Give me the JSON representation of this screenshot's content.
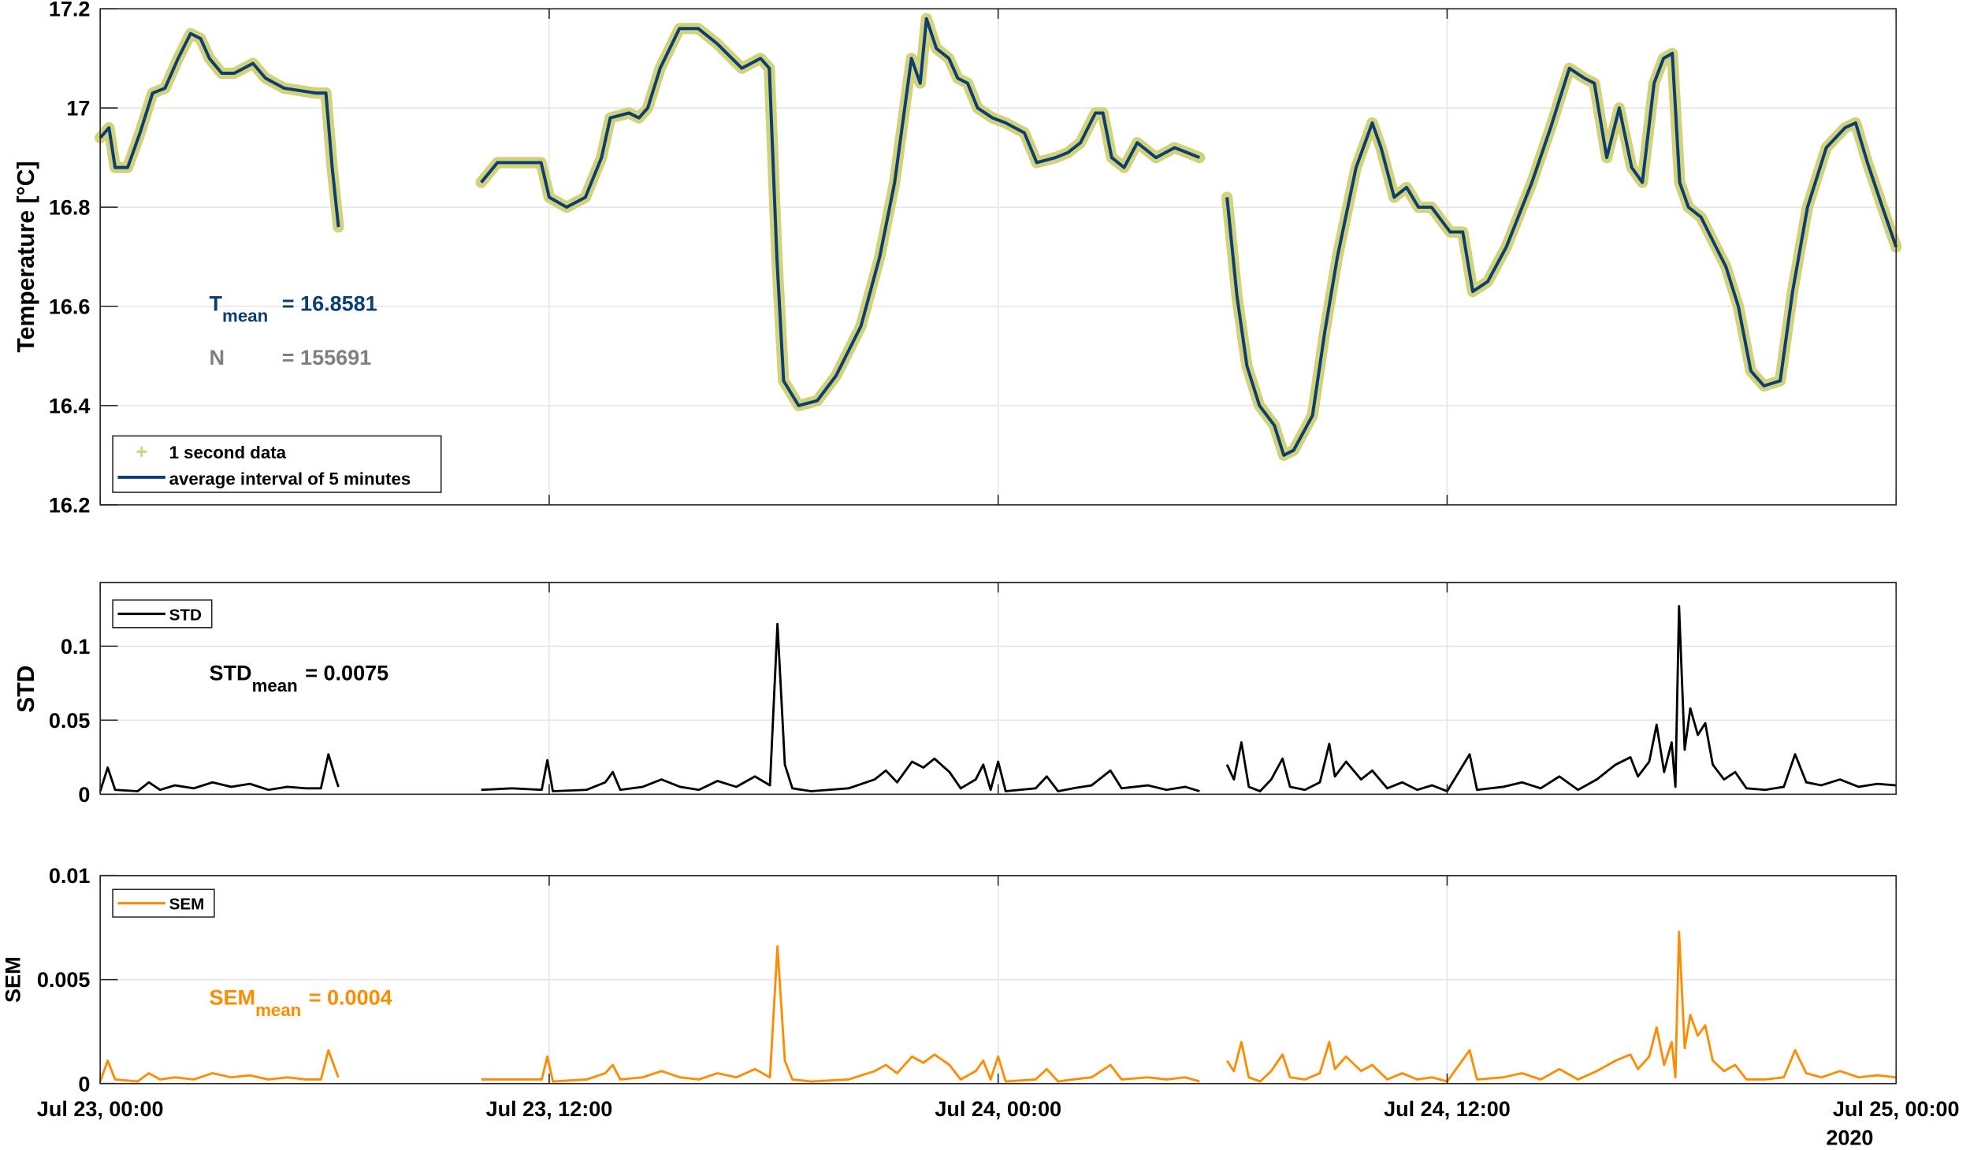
{
  "chart_data": [
    {
      "type": "line",
      "ylabel": "Temperature [°C]",
      "ylim": [
        16.2,
        17.2
      ],
      "yticks": [
        "16.2",
        "16.4",
        "16.6",
        "16.8",
        "17",
        "17.2"
      ],
      "xlim": [
        "2020-07-23 00:00",
        "2020-07-25 00:00"
      ],
      "grid": true,
      "legend_placement": "bottom-left",
      "legend": [
        "1 second data",
        "average interval of 5 minutes"
      ],
      "colors": {
        "raw": "#d2d27a",
        "avg": "#0b3f73",
        "n_text": "#808080"
      },
      "annotations": {
        "tmean_label": "T",
        "tmean_sub": "mean",
        "tmean_value": "= 16.8581",
        "n_label": "N",
        "n_value": "= 155691"
      },
      "segments": [
        {
          "t": [
            "07-23 00:00",
            "07-23 00:14",
            "07-23 00:24",
            "07-23 00:44",
            "07-23 01:04",
            "07-23 01:24",
            "07-23 01:44",
            "07-23 02:05",
            "07-23 02:25",
            "07-23 02:41",
            "07-23 02:55",
            "07-23 03:15",
            "07-23 03:35",
            "07-23 04:05",
            "07-23 04:25",
            "07-23 04:55",
            "07-23 05:46",
            "07-23 06:02",
            "07-23 06:12",
            "07-23 06:22"
          ],
          "temp": [
            16.94,
            16.96,
            16.88,
            16.88,
            16.95,
            17.03,
            17.04,
            17.1,
            17.15,
            17.14,
            17.1,
            17.07,
            17.07,
            17.09,
            17.06,
            17.04,
            17.03,
            17.03,
            16.88,
            16.76
          ]
        },
        {
          "t": [
            "07-23 10:11",
            "07-23 10:37",
            "07-23 11:07",
            "07-23 11:47",
            "07-23 12:00",
            "07-23 12:28",
            "07-23 12:58",
            "07-23 13:24",
            "07-23 13:38",
            "07-23 14:08",
            "07-23 14:24",
            "07-23 14:38",
            "07-23 14:58",
            "07-23 15:29",
            "07-23 15:59",
            "07-23 16:29",
            "07-23 17:09",
            "07-23 17:39",
            "07-23 17:53",
            "07-23 18:05",
            "07-23 18:16",
            "07-23 18:40",
            "07-23 19:10",
            "07-23 19:40",
            "07-23 20:20",
            "07-23 20:50",
            "07-23 21:14",
            "07-23 21:41",
            "07-23 21:55",
            "07-23 22:05",
            "07-23 22:21",
            "07-23 22:41",
            "07-23 22:55",
            "07-23 23:11",
            "07-23 23:27",
            "07-23 23:51",
            "07-24 00:12",
            "07-24 00:42",
            "07-24 01:02",
            "07-24 01:32",
            "07-24 01:52",
            "07-24 02:12",
            "07-24 02:36",
            "07-24 02:48",
            "07-24 03:02",
            "07-24 03:22",
            "07-24 03:43",
            "07-24 04:13",
            "07-24 04:43",
            "07-24 05:03",
            "07-24 05:23"
          ],
          "temp": [
            16.85,
            16.89,
            16.89,
            16.89,
            16.82,
            16.8,
            16.82,
            16.9,
            16.98,
            16.99,
            16.98,
            17.0,
            17.08,
            17.16,
            17.16,
            17.13,
            17.08,
            17.1,
            17.08,
            16.7,
            16.45,
            16.4,
            16.41,
            16.46,
            16.56,
            16.7,
            16.85,
            17.1,
            17.05,
            17.18,
            17.12,
            17.1,
            17.06,
            17.05,
            17.0,
            16.98,
            16.97,
            16.95,
            16.89,
            16.9,
            16.91,
            16.93,
            16.99,
            16.99,
            16.9,
            16.88,
            16.93,
            16.9,
            16.92,
            16.91,
            16.9
          ]
        },
        {
          "t": [
            "07-24 06:07",
            "07-24 06:23",
            "07-24 06:39",
            "07-24 06:59",
            "07-24 07:23",
            "07-24 07:38",
            "07-24 07:54",
            "07-24 08:24",
            "07-24 08:44",
            "07-24 09:04",
            "07-24 09:34",
            "07-24 10:00",
            "07-24 10:14",
            "07-24 10:35",
            "07-24 10:55",
            "07-24 11:14",
            "07-24 11:35",
            "07-24 12:05",
            "07-24 12:25",
            "07-24 12:41",
            "07-24 13:05",
            "07-24 13:35",
            "07-24 14:16",
            "07-24 14:46",
            "07-24 15:16",
            "07-24 15:40",
            "07-24 15:56",
            "07-24 16:16",
            "07-24 16:36",
            "07-24 16:56",
            "07-24 17:13",
            "07-24 17:32",
            "07-24 17:47",
            "07-24 18:01",
            "07-24 18:13",
            "07-24 18:27",
            "07-24 18:47",
            "07-24 19:07",
            "07-24 19:27",
            "07-24 19:47",
            "07-24 20:07",
            "07-24 20:28",
            "07-24 20:54",
            "07-24 21:14",
            "07-24 21:38",
            "07-24 22:08",
            "07-24 22:38",
            "07-24 22:55",
            "07-24 23:14",
            "07-24 23:38",
            "07-25 00:00"
          ],
          "temp": [
            16.82,
            16.62,
            16.48,
            16.4,
            16.36,
            16.3,
            16.31,
            16.38,
            16.55,
            16.7,
            16.88,
            16.97,
            16.92,
            16.82,
            16.84,
            16.8,
            16.8,
            16.75,
            16.75,
            16.63,
            16.65,
            16.72,
            16.85,
            16.96,
            17.08,
            17.06,
            17.05,
            16.9,
            17.0,
            16.88,
            16.85,
            17.05,
            17.1,
            17.11,
            16.85,
            16.8,
            16.78,
            16.73,
            16.68,
            16.6,
            16.47,
            16.44,
            16.45,
            16.63,
            16.8,
            16.92,
            16.96,
            16.97,
            16.89,
            16.8,
            16.72
          ]
        }
      ]
    },
    {
      "type": "line",
      "ylabel": "STD",
      "ylim": [
        0,
        0.143
      ],
      "yticks": [
        "0",
        "0.05",
        "0.1"
      ],
      "ytick_values": [
        0,
        0.05,
        0.1
      ],
      "grid": true,
      "legend_placement": "top-left",
      "legend": [
        "STD"
      ],
      "color": "#000000",
      "annotations": {
        "label": "STD",
        "sub": "mean",
        "value": "= 0.0075"
      },
      "segments": [
        {
          "t": [
            "07-23 00:00",
            "07-23 00:12",
            "07-23 00:24",
            "07-23 01:00",
            "07-23 01:18",
            "07-23 01:36",
            "07-23 02:00",
            "07-23 02:30",
            "07-23 03:00",
            "07-23 03:30",
            "07-23 04:00",
            "07-23 04:30",
            "07-23 05:00",
            "07-23 05:30",
            "07-23 05:54",
            "07-23 06:06",
            "07-23 06:18",
            "07-23 06:22"
          ],
          "std": [
            0.002,
            0.018,
            0.003,
            0.002,
            0.008,
            0.003,
            0.006,
            0.004,
            0.008,
            0.005,
            0.007,
            0.003,
            0.005,
            0.004,
            0.004,
            0.027,
            0.01,
            0.005
          ]
        },
        {
          "t": [
            "07-23 10:11",
            "07-23 11:00",
            "07-23 11:48",
            "07-23 11:57",
            "07-23 12:06",
            "07-23 13:00",
            "07-23 13:30",
            "07-23 13:42",
            "07-23 13:54",
            "07-23 14:30",
            "07-23 15:00",
            "07-23 15:30",
            "07-23 16:00",
            "07-23 16:30",
            "07-23 17:00",
            "07-23 17:30",
            "07-23 17:54",
            "07-23 18:06",
            "07-23 18:18",
            "07-23 18:30",
            "07-23 19:00",
            "07-23 20:00",
            "07-23 20:42",
            "07-23 21:00",
            "07-23 21:18",
            "07-23 21:42",
            "07-23 22:00",
            "07-23 22:18",
            "07-23 22:42",
            "07-23 23:00",
            "07-23 23:24",
            "07-23 23:36",
            "07-23 23:48",
            "07-24 00:00",
            "07-24 00:12",
            "07-24 01:00",
            "07-24 01:18",
            "07-24 01:36",
            "07-24 02:00",
            "07-24 02:30",
            "07-24 03:00",
            "07-24 03:18",
            "07-24 04:00",
            "07-24 04:30",
            "07-24 05:00",
            "07-24 05:23"
          ],
          "std": [
            0.003,
            0.004,
            0.003,
            0.023,
            0.002,
            0.003,
            0.008,
            0.015,
            0.003,
            0.005,
            0.01,
            0.005,
            0.003,
            0.009,
            0.005,
            0.012,
            0.006,
            0.115,
            0.02,
            0.004,
            0.002,
            0.004,
            0.01,
            0.016,
            0.008,
            0.022,
            0.018,
            0.024,
            0.015,
            0.004,
            0.01,
            0.02,
            0.003,
            0.022,
            0.002,
            0.004,
            0.012,
            0.002,
            0.004,
            0.006,
            0.016,
            0.004,
            0.006,
            0.003,
            0.005,
            0.002
          ]
        },
        {
          "t": [
            "07-24 06:07",
            "07-24 06:18",
            "07-24 06:30",
            "07-24 06:42",
            "07-24 07:00",
            "07-24 07:18",
            "07-24 07:36",
            "07-24 07:48",
            "07-24 08:12",
            "07-24 08:36",
            "07-24 08:51",
            "07-24 09:00",
            "07-24 09:18",
            "07-24 09:42",
            "07-24 10:00",
            "07-24 10:24",
            "07-24 10:48",
            "07-24 11:12",
            "07-24 11:36",
            "07-24 12:00",
            "07-24 12:36",
            "07-24 12:48",
            "07-24 13:30",
            "07-24 14:00",
            "07-24 14:30",
            "07-24 15:00",
            "07-24 15:30",
            "07-24 16:00",
            "07-24 16:30",
            "07-24 16:54",
            "07-24 17:06",
            "07-24 17:24",
            "07-24 17:36",
            "07-24 17:48",
            "07-24 18:00",
            "07-24 18:06",
            "07-24 18:12",
            "07-24 18:21",
            "07-24 18:30",
            "07-24 18:42",
            "07-24 18:54",
            "07-24 19:06",
            "07-24 19:24",
            "07-24 19:42",
            "07-24 20:00",
            "07-24 20:30",
            "07-24 21:00",
            "07-24 21:18",
            "07-24 21:36",
            "07-24 22:00",
            "07-24 22:30",
            "07-24 23:00",
            "07-24 23:30",
            "07-25 00:00"
          ],
          "std": [
            0.02,
            0.01,
            0.035,
            0.005,
            0.002,
            0.01,
            0.024,
            0.005,
            0.003,
            0.008,
            0.034,
            0.012,
            0.022,
            0.01,
            0.016,
            0.004,
            0.008,
            0.003,
            0.006,
            0.002,
            0.027,
            0.003,
            0.005,
            0.008,
            0.004,
            0.012,
            0.003,
            0.01,
            0.02,
            0.025,
            0.012,
            0.022,
            0.047,
            0.015,
            0.035,
            0.005,
            0.127,
            0.03,
            0.058,
            0.04,
            0.048,
            0.02,
            0.01,
            0.015,
            0.004,
            0.003,
            0.005,
            0.027,
            0.008,
            0.006,
            0.01,
            0.005,
            0.007,
            0.006
          ]
        }
      ]
    },
    {
      "type": "line",
      "ylabel": "SEM",
      "ylim": [
        0,
        0.01
      ],
      "yticks": [
        "0",
        "0.005",
        "0.01"
      ],
      "ytick_values": [
        0,
        0.005,
        0.01
      ],
      "grid": true,
      "legend_placement": "top-left",
      "legend": [
        "SEM"
      ],
      "color": "#ff8c00",
      "annotations": {
        "label": "SEM",
        "sub": "mean",
        "value": "= 0.0004"
      },
      "segments": [
        {
          "sem": [
            0.0001,
            0.0011,
            0.0002,
            0.0001,
            0.0005,
            0.0002,
            0.0003,
            0.0002,
            0.0005,
            0.0003,
            0.0004,
            0.0002,
            0.0003,
            0.0002,
            0.0002,
            0.0016,
            0.0006,
            0.0003
          ]
        },
        {
          "sem": [
            0.0002,
            0.0002,
            0.0002,
            0.0013,
            0.0001,
            0.0002,
            0.0005,
            0.0009,
            0.0002,
            0.0003,
            0.0006,
            0.0003,
            0.0002,
            0.0005,
            0.0003,
            0.0007,
            0.0003,
            0.0066,
            0.0011,
            0.0002,
            0.0001,
            0.0002,
            0.0006,
            0.0009,
            0.0005,
            0.0013,
            0.001,
            0.0014,
            0.0009,
            0.0002,
            0.0006,
            0.0011,
            0.0002,
            0.0013,
            0.0001,
            0.0002,
            0.0007,
            0.0001,
            0.0002,
            0.0003,
            0.0009,
            0.0002,
            0.0003,
            0.0002,
            0.0003,
            0.0001
          ]
        },
        {
          "sem": [
            0.0011,
            0.0006,
            0.002,
            0.0003,
            0.0001,
            0.0006,
            0.0014,
            0.0003,
            0.0002,
            0.0005,
            0.002,
            0.0007,
            0.0013,
            0.0006,
            0.0009,
            0.0002,
            0.0005,
            0.0002,
            0.0003,
            0.0001,
            0.0016,
            0.0002,
            0.0003,
            0.0005,
            0.0002,
            0.0007,
            0.0002,
            0.0006,
            0.0011,
            0.0014,
            0.0007,
            0.0013,
            0.0027,
            0.0009,
            0.002,
            0.0003,
            0.0073,
            0.0017,
            0.0033,
            0.0023,
            0.0028,
            0.0011,
            0.0006,
            0.0009,
            0.0002,
            0.0002,
            0.0003,
            0.0016,
            0.0005,
            0.0003,
            0.0006,
            0.0003,
            0.0004,
            0.0003
          ]
        }
      ]
    }
  ],
  "xaxis": {
    "ticks": [
      "Jul 23, 00:00",
      "Jul 23, 12:00",
      "Jul 24, 00:00",
      "Jul 24, 12:00",
      "Jul 25, 00:00"
    ],
    "tick_times": [
      "07-23 00:00",
      "07-23 12:00",
      "07-24 00:00",
      "07-24 12:00",
      "07-25 00:00"
    ],
    "year": "2020"
  }
}
